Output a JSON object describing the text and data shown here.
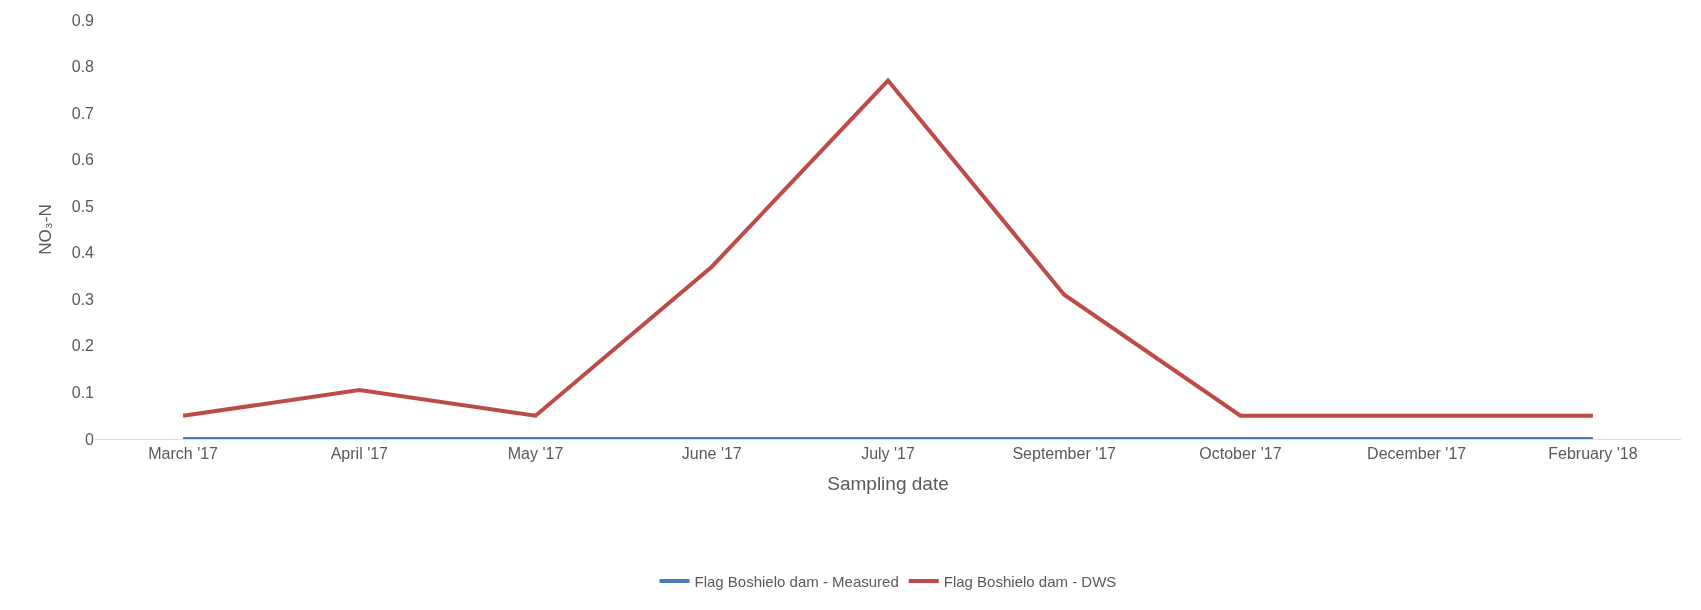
{
  "chart_data": {
    "type": "line",
    "xlabel": "Sampling date",
    "ylabel": "NO₃-N",
    "categories": [
      "March '17",
      "April '17",
      "May '17",
      "June '17",
      "July '17",
      "September '17",
      "October '17",
      "December '17",
      "February '18"
    ],
    "series": [
      {
        "name": "Flag Boshielo dam - Measured",
        "color": "#4a7ebb",
        "values": [
          0,
          0,
          0,
          0,
          0,
          0,
          0,
          0,
          0
        ]
      },
      {
        "name": "Flag Boshielo dam - DWS",
        "color": "#be4b48",
        "values": [
          0.05,
          0.105,
          0.05,
          0.37,
          0.77,
          0.31,
          0.05,
          0.05,
          0.05
        ]
      }
    ],
    "ylim": [
      0,
      0.9
    ],
    "yticks": [
      0,
      0.1,
      0.2,
      0.3,
      0.4,
      0.5,
      0.6,
      0.7,
      0.8,
      0.9
    ],
    "grid": false,
    "legend": "bottom",
    "marker": "none",
    "line_style": "solid"
  }
}
